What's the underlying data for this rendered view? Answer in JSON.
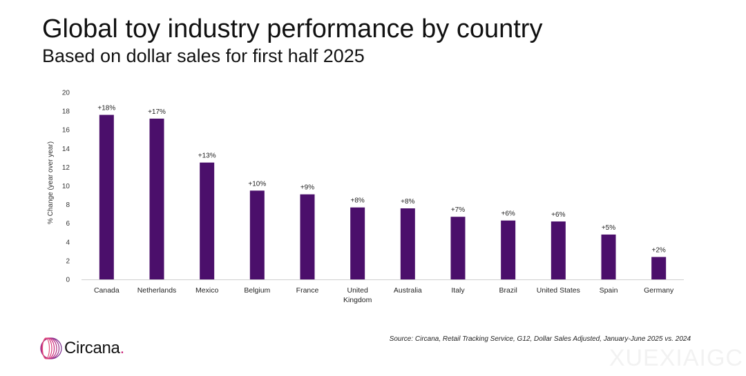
{
  "header": {
    "title": "Global toy industry performance by country",
    "subtitle": "Based on dollar sales for first half 2025"
  },
  "chart_data": {
    "type": "bar",
    "title": "Global toy industry performance by country",
    "subtitle": "Based on dollar sales for first half 2025",
    "xlabel": "",
    "ylabel": "% Change (year over year)",
    "ylim": [
      0,
      20
    ],
    "yticks": [
      0,
      2,
      4,
      6,
      8,
      10,
      12,
      14,
      16,
      18,
      20
    ],
    "grid": false,
    "bar_color": "#4b0f6b",
    "categories": [
      "Canada",
      "Netherlands",
      "Mexico",
      "Belgium",
      "France",
      "United Kingdom",
      "Australia",
      "Italy",
      "Brazil",
      "United States",
      "Spain",
      "Germany"
    ],
    "values": [
      17.6,
      17.2,
      12.5,
      9.5,
      9.1,
      7.7,
      7.6,
      6.7,
      6.3,
      6.2,
      4.8,
      2.4
    ],
    "data_labels": [
      "+18%",
      "+17%",
      "+13%",
      "+10%",
      "+9%",
      "+8%",
      "+8%",
      "+7%",
      "+6%",
      "+6%",
      "+5%",
      "+2%"
    ]
  },
  "footer": {
    "source": "Source: Circana, Retail Tracking Service, G12, Dollar Sales Adjusted, January-June 2025 vs. 2024",
    "brand_name": "Circana",
    "brand_dot": ".",
    "brand_color": "#cc2a7c",
    "watermark": "XUEXIAIGC"
  }
}
